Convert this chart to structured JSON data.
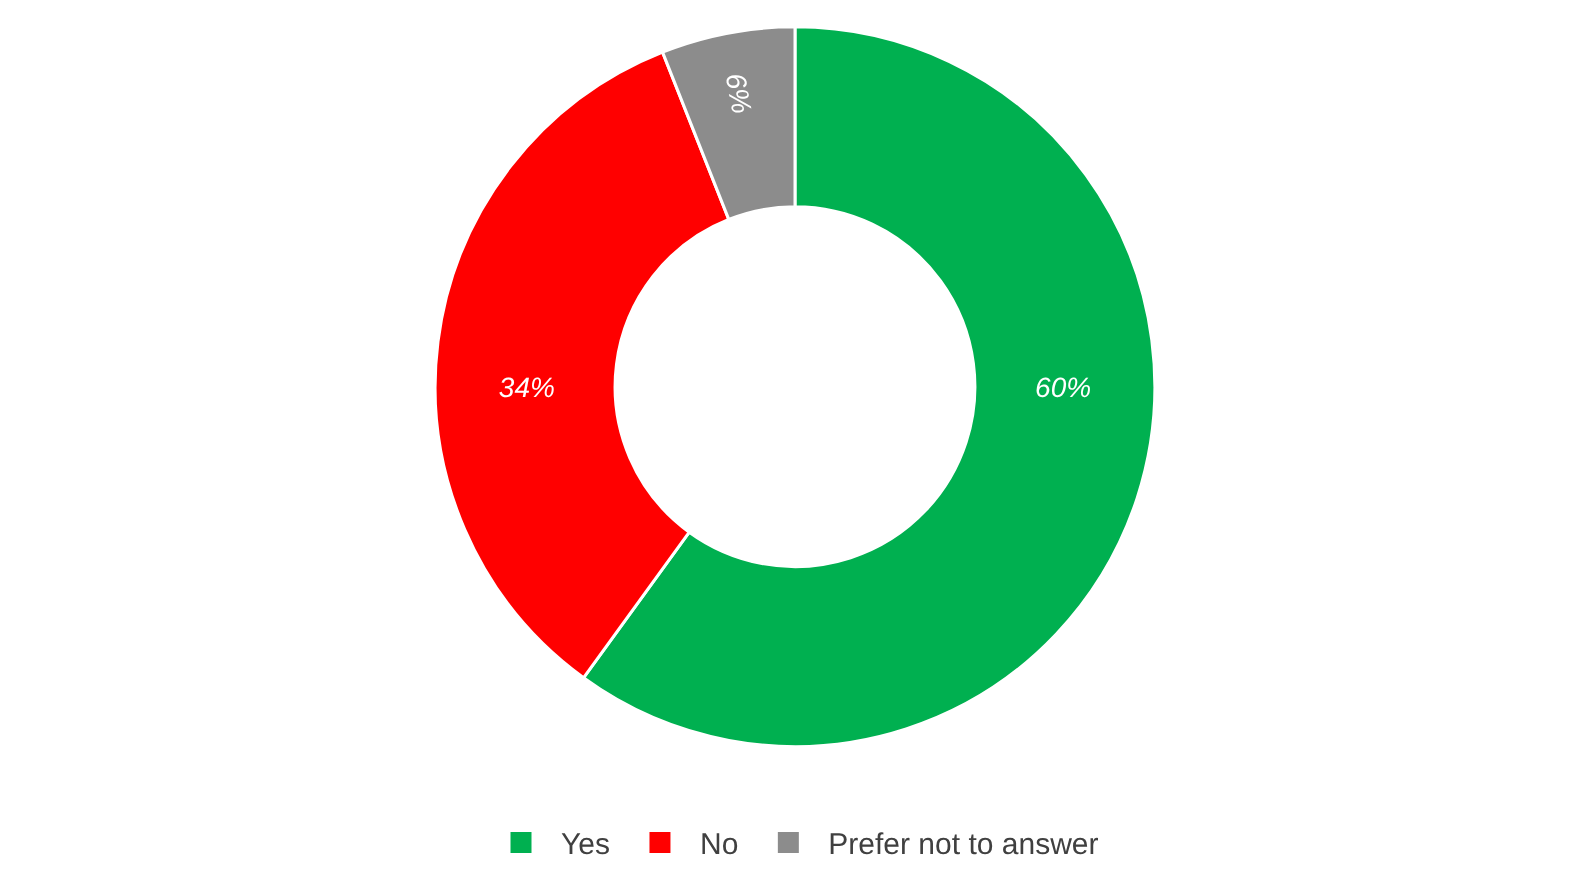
{
  "chart_data": {
    "type": "donut",
    "categories": [
      "Yes",
      "No",
      "Prefer not to answer"
    ],
    "values": [
      60,
      34,
      6
    ],
    "colors": [
      "#00b050",
      "#ff0000",
      "#8c8c8c"
    ],
    "value_labels": [
      "60%",
      "34%",
      "6%"
    ],
    "legend": "bottom"
  }
}
